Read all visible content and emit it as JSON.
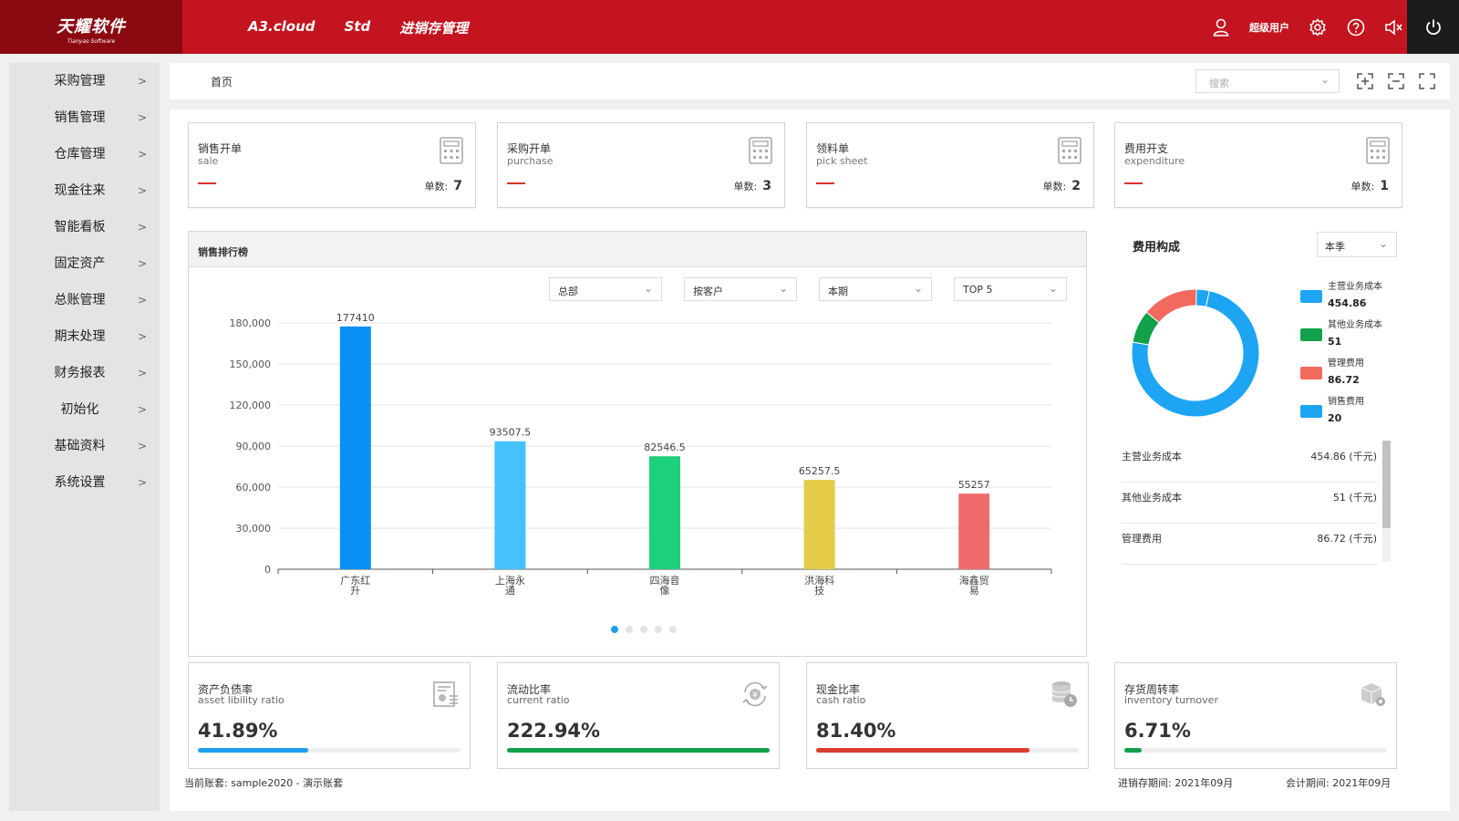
{
  "header": {
    "logo_cn": "天耀软件",
    "logo_en": "Tianyao Software",
    "nav": [
      "A3.cloud",
      "Std",
      "进销存管理"
    ],
    "user_label": "超级用户"
  },
  "sidebar": {
    "items": [
      {
        "label": "采购管理"
      },
      {
        "label": "销售管理"
      },
      {
        "label": "仓库管理"
      },
      {
        "label": "现金往来"
      },
      {
        "label": "智能看板"
      },
      {
        "label": "固定资产"
      },
      {
        "label": "总账管理"
      },
      {
        "label": "期末处理"
      },
      {
        "label": "财务报表"
      },
      {
        "label": "初始化"
      },
      {
        "label": "基础资料"
      },
      {
        "label": "系统设置"
      }
    ]
  },
  "breadcrumb": {
    "home": "首页",
    "search_placeholder": "搜索"
  },
  "summary_cards": [
    {
      "cn": "销售开单",
      "en": "sale",
      "count_label": "单数:",
      "count": "7"
    },
    {
      "cn": "采购开单",
      "en": "purchase",
      "count_label": "单数:",
      "count": "3"
    },
    {
      "cn": "领料单",
      "en": "pick sheet",
      "count_label": "单数:",
      "count": "2"
    },
    {
      "cn": "费用开支",
      "en": "expenditure",
      "count_label": "单数:",
      "count": "1"
    }
  ],
  "ranking": {
    "title": "销售排行榜",
    "filters": [
      "总部",
      "按客户",
      "本期",
      "TOP 5"
    ]
  },
  "chart_data": {
    "type": "bar",
    "categories": [
      "广东红升",
      "上海永通",
      "四海音像",
      "洪海科技",
      "海鑫贸易"
    ],
    "category_lines": [
      [
        "广东红",
        "升"
      ],
      [
        "上海永",
        "通"
      ],
      [
        "四海音",
        "像"
      ],
      [
        "洪海科",
        "技"
      ],
      [
        "海鑫贸",
        "易"
      ]
    ],
    "values": [
      177410,
      93507.5,
      82546.5,
      65257.5,
      55257
    ],
    "value_labels": [
      "177410",
      "93507.5",
      "82546.5",
      "65257.5",
      "55257"
    ],
    "colors": [
      "#0a8ff5",
      "#45c2fb",
      "#1ecf7c",
      "#e5cc48",
      "#ef6b6b"
    ],
    "yticks": [
      0,
      30000,
      60000,
      90000,
      120000,
      150000,
      180000
    ],
    "ytick_labels": [
      "0",
      "30,000",
      "60,000",
      "90,000",
      "120,000",
      "150,000",
      "180,000"
    ],
    "ylim": [
      0,
      180000
    ],
    "grid": true,
    "title": "",
    "xlabel": "",
    "ylabel": ""
  },
  "expense": {
    "title": "费用构成",
    "period": "本季",
    "donut": [
      {
        "name": "主营业务成本",
        "value": 454.86,
        "display": "454.86",
        "color": "#1da5f3"
      },
      {
        "name": "其他业务成本",
        "value": 51,
        "display": "51",
        "color": "#12a04a"
      },
      {
        "name": "管理费用",
        "value": 86.72,
        "display": "86.72",
        "color": "#f2695d"
      },
      {
        "name": "销售费用",
        "value": 20,
        "display": "20",
        "color": "#1da5f3"
      }
    ],
    "table": [
      {
        "name": "主营业务成本",
        "value": "454.86 (千元)"
      },
      {
        "name": "其他业务成本",
        "value": "51 (千元)"
      },
      {
        "name": "管理费用",
        "value": "86.72 (千元)"
      }
    ]
  },
  "ratios": [
    {
      "cn": "资产负债率",
      "en": "asset libility ratio",
      "value": "41.89%",
      "fill": 0.4189,
      "color": "#1ea0f0"
    },
    {
      "cn": "流动比率",
      "en": "current ratio",
      "value": "222.94%",
      "fill": 1.0,
      "color": "#12a04a"
    },
    {
      "cn": "现金比率",
      "en": "cash ratio",
      "value": "81.40%",
      "fill": 0.814,
      "color": "#dc3b31"
    },
    {
      "cn": "存货周转率",
      "en": "inventory turnover",
      "value": "6.71%",
      "fill": 0.0671,
      "color": "#12a04a"
    }
  ],
  "footer": {
    "account": "当前账套: sample2020 - 演示账套",
    "inv_period": "进销存期间: 2021年09月",
    "acc_period": "会计期间: 2021年09月"
  }
}
